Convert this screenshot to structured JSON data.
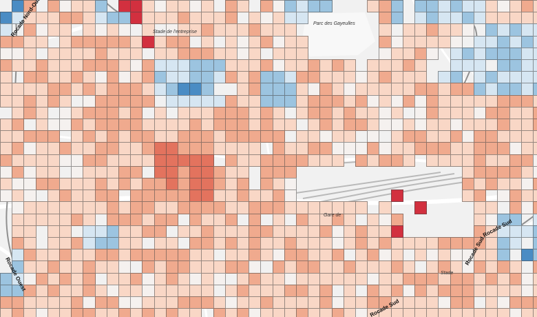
{
  "colors": {
    "cold_strong": "#4a8cc4",
    "cold": "#9cc4e0",
    "cold_light": "#d6e6f2",
    "neutral": "#f5f1ef",
    "warm_light": "#f9d7c6",
    "warm": "#f0aa8e",
    "warm_strong": "#e3735e",
    "hot": "#d2303f",
    "basemap_bg": "#f1f1f1",
    "road": "#ffffff",
    "rail": "#b9b9b9"
  },
  "labels": {
    "stade_north": "Stade de l'entreprise",
    "parc": "Parc des Gayeulles",
    "gare": "Gare de",
    "rocade_nord_ouest": "Rocade Nord-Ouest",
    "rocade_ouest": "Rocade Ouest",
    "rocade_sud_1": "Rocade Sud",
    "rocade_sud_2": "Rocade Sud",
    "rocade_sud_3": "Rocade Sud",
    "stade_south": "Stade"
  }
}
